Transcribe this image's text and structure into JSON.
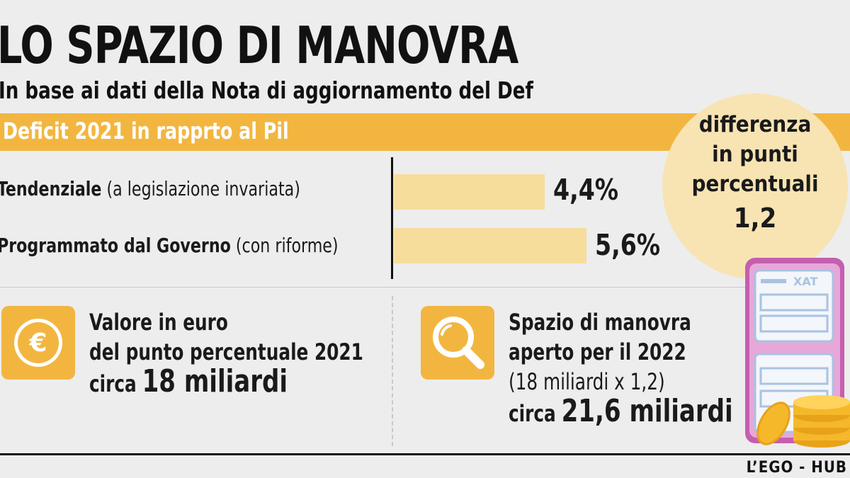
{
  "title": "LO SPAZIO DI MANOVRA",
  "subtitle": "In base ai dati della Nota di aggiornamento del Def",
  "band_label": "Deficit 2021 in rapprto al Pil",
  "circle": {
    "line1": "differenza",
    "line2": "in punti",
    "line3": "percentuali",
    "value": "1,2"
  },
  "chart_data": {
    "type": "bar",
    "categories": [
      "Tendenziale (a legislazione invariata)",
      "Programmato dal Governo (con riforme)"
    ],
    "values": [
      4.4,
      5.6
    ],
    "value_labels": [
      "4,4%",
      "5,6%"
    ],
    "title": "Deficit 2021 in rapprto al Pil"
  },
  "rows": [
    {
      "label_bold": "Tendenziale",
      "label_rest": "(a legislazione invariata)"
    },
    {
      "label_bold": "Programmato dal Governo",
      "label_rest": "(con riforme)"
    }
  ],
  "left_info": {
    "icon": "euro-icon",
    "line1": "Valore in euro",
    "line2": "del punto percentuale 2021",
    "line3_prefix": "circa",
    "line3_value": "18 miliardi"
  },
  "right_info": {
    "icon": "magnifier-icon",
    "line1": "Spazio di manovra",
    "line2": "aperto per il 2022",
    "line3": "(18 miliardi x 1,2)",
    "line4_prefix": "circa",
    "line4_value": "21,6 miliardi"
  },
  "credit": "L’EGO - HUB",
  "colors": {
    "accent": "#f2b640",
    "bar": "#f7dd9c",
    "circle": "#f8e3b3",
    "background": "#ededed"
  }
}
